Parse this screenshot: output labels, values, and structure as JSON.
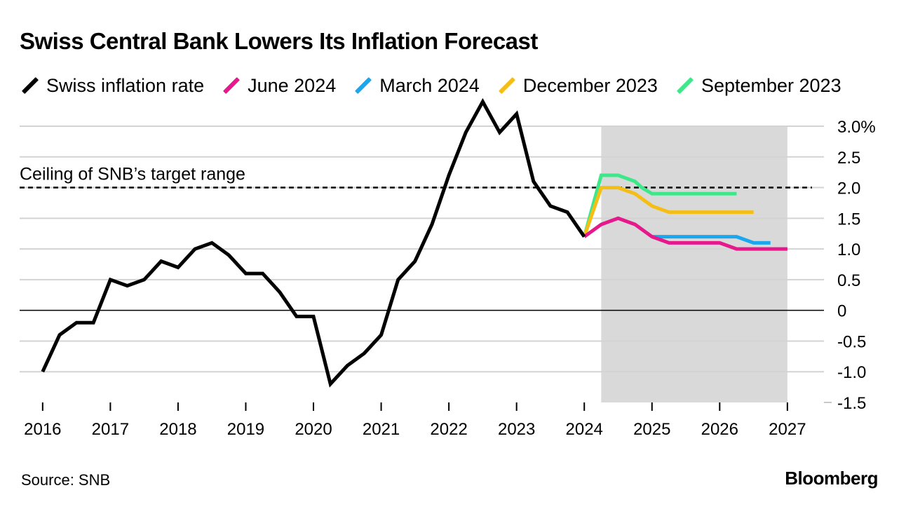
{
  "chart_data": {
    "type": "line",
    "title": "Swiss Central Bank Lowers Its Inflation Forecast",
    "y_unit_suffix": "%",
    "ylim": [
      -1.5,
      3.0
    ],
    "y_ticks": [
      {
        "value": 3.0,
        "label": "3.0%"
      },
      {
        "value": 2.5,
        "label": "2.5"
      },
      {
        "value": 2.0,
        "label": "2.0"
      },
      {
        "value": 1.5,
        "label": "1.5"
      },
      {
        "value": 1.0,
        "label": "1.0"
      },
      {
        "value": 0.5,
        "label": "0.5"
      },
      {
        "value": 0,
        "label": "0"
      },
      {
        "value": -0.5,
        "label": "-0.5"
      },
      {
        "value": -1.0,
        "label": "-1.0"
      },
      {
        "value": -1.5,
        "label": "-1.5"
      }
    ],
    "xlim": [
      2015.66,
      2027.54
    ],
    "x_ticks": [
      2016,
      2017,
      2018,
      2019,
      2020,
      2021,
      2022,
      2023,
      2024,
      2025,
      2026,
      2027
    ],
    "x_tick_labels": [
      "2016",
      "2017",
      "2018",
      "2019",
      "2020",
      "2021",
      "2022",
      "2023",
      "2024",
      "2025",
      "2026",
      "2027"
    ],
    "forecast_shading": {
      "from": 2024.25,
      "to": 2027.0
    },
    "reference_line": {
      "value": 2.0,
      "label": "Ceiling of SNB’s target range"
    },
    "series": [
      {
        "name": "Swiss inflation rate",
        "color": "#000000",
        "x": [
          2016.0,
          2016.25,
          2016.5,
          2016.75,
          2017.0,
          2017.25,
          2017.5,
          2017.75,
          2018.0,
          2018.25,
          2018.5,
          2018.75,
          2019.0,
          2019.25,
          2019.5,
          2019.75,
          2020.0,
          2020.25,
          2020.5,
          2020.75,
          2021.0,
          2021.25,
          2021.5,
          2021.75,
          2022.0,
          2022.25,
          2022.5,
          2022.75,
          2023.0,
          2023.25,
          2023.5,
          2023.75,
          2024.0
        ],
        "y": [
          -1.0,
          -0.4,
          -0.2,
          -0.2,
          0.5,
          0.4,
          0.5,
          0.8,
          0.7,
          1.0,
          1.1,
          0.9,
          0.6,
          0.6,
          0.3,
          -0.1,
          -0.1,
          -1.2,
          -0.9,
          -0.7,
          -0.4,
          0.5,
          0.8,
          1.4,
          2.2,
          2.9,
          3.4,
          2.9,
          3.2,
          2.1,
          1.7,
          1.6,
          1.2
        ]
      },
      {
        "name": "June 2024",
        "color": "#e6198c",
        "x": [
          2024.0,
          2024.25,
          2024.5,
          2024.75,
          2025.0,
          2025.25,
          2025.5,
          2025.75,
          2026.0,
          2026.25,
          2026.5,
          2026.75,
          2027.0
        ],
        "y": [
          1.2,
          1.4,
          1.5,
          1.4,
          1.2,
          1.1,
          1.1,
          1.1,
          1.1,
          1.0,
          1.0,
          1.0,
          1.0
        ]
      },
      {
        "name": "March 2024",
        "color": "#1aa7ee",
        "x": [
          2025.0,
          2025.25,
          2025.5,
          2025.75,
          2026.0,
          2026.25,
          2026.5,
          2026.75
        ],
        "y": [
          1.2,
          1.2,
          1.2,
          1.2,
          1.2,
          1.2,
          1.1,
          1.1
        ]
      },
      {
        "name": "December 2023",
        "color": "#f5be16",
        "x": [
          2024.0,
          2024.25,
          2024.5,
          2024.75,
          2025.0,
          2025.25,
          2025.5,
          2025.75,
          2026.0,
          2026.25,
          2026.5
        ],
        "y": [
          1.2,
          2.0,
          2.0,
          1.9,
          1.7,
          1.6,
          1.6,
          1.6,
          1.6,
          1.6,
          1.6
        ]
      },
      {
        "name": "September 2023",
        "color": "#3ee88a",
        "x": [
          2024.0,
          2024.25,
          2024.5,
          2024.75,
          2024.85,
          2025.0,
          2025.25,
          2025.5,
          2025.75,
          2026.0,
          2026.25
        ],
        "y": [
          1.2,
          2.2,
          2.2,
          2.1,
          2.0,
          1.9,
          1.9,
          1.9,
          1.9,
          1.9,
          1.9
        ]
      }
    ]
  },
  "footer": {
    "source": "Source: SNB",
    "brand": "Bloomberg"
  }
}
